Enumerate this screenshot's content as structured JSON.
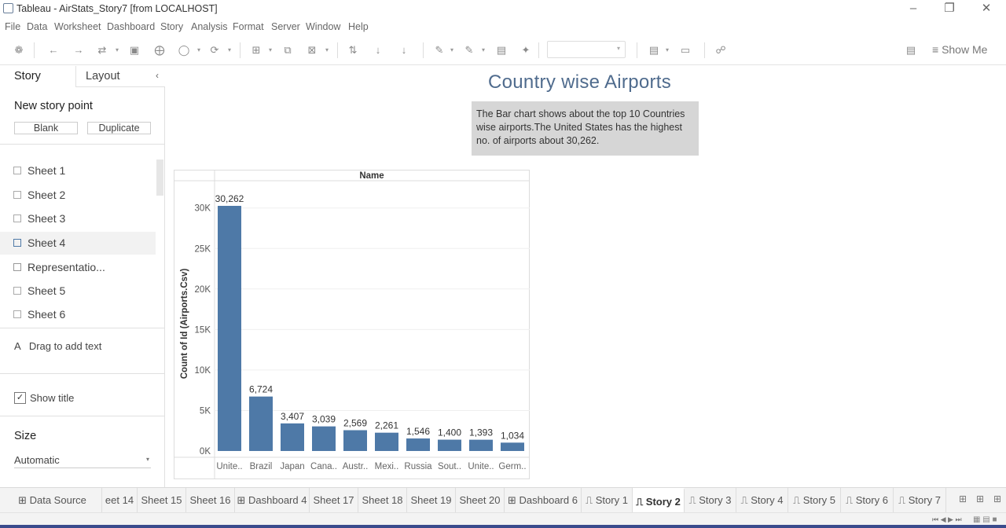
{
  "window": {
    "title": "Tableau - AirStats_Story7 [from LOCALHOST]",
    "minimize_icon": "minimize-icon",
    "restore_icon": "restore-icon",
    "close_icon": "close-icon"
  },
  "menu": [
    "File",
    "Data",
    "Worksheet",
    "Dashboard",
    "Story",
    "Analysis",
    "Format",
    "Server",
    "Window",
    "Help"
  ],
  "toolbar": {
    "show_me_label": "Show Me"
  },
  "left_pane": {
    "tab_story": "Story",
    "tab_layout": "Layout",
    "collapse_glyph": "‹",
    "new_story_point": "New story point",
    "blank_button": "Blank",
    "duplicate_button": "Duplicate",
    "sheets": [
      "Sheet 1",
      "Sheet 2",
      "Sheet 3",
      "Sheet 4",
      "Representatio...",
      "Sheet 5",
      "Sheet 6"
    ],
    "drag_text_glyph": "A",
    "drag_text": "Drag to add text",
    "show_title_check": "✓",
    "show_title_label": "Show title",
    "show_title_checked": true,
    "size_heading": "Size",
    "size_value": "Automatic"
  },
  "story": {
    "title": "Country wise Airports",
    "caption": "The Bar chart shows about the top 10 Countries wise airports.The United States has the highest no. of airports about 30,262."
  },
  "chart_data": {
    "type": "bar",
    "header": "Name",
    "ylabel": "Count of Id (Airports.Csv)",
    "xlabel": "",
    "categories": [
      "Unite..",
      "Brazil",
      "Japan",
      "Cana..",
      "Austr..",
      "Mexi..",
      "Russia",
      "Sout..",
      "Unite..",
      "Germ.."
    ],
    "values": [
      30262,
      6724,
      3407,
      3039,
      2569,
      2261,
      1546,
      1400,
      1393,
      1034
    ],
    "value_labels": [
      "30,262",
      "6,724",
      "3,407",
      "3,039",
      "2,569",
      "2,261",
      "1,546",
      "1,400",
      "1,393",
      "1,034"
    ],
    "yticks": [
      0,
      5000,
      10000,
      15000,
      20000,
      25000,
      30000
    ],
    "ytick_labels": [
      "0K",
      "5K",
      "10K",
      "15K",
      "20K",
      "25K",
      "30K"
    ],
    "ylim": [
      0,
      30262
    ],
    "bar_color": "#4e79a7",
    "grid": true
  },
  "bottom_tabs": [
    "Data Source",
    "eet 14",
    "Sheet 15",
    "Sheet 16",
    "Dashboard 4",
    "Sheet 17",
    "Sheet 18",
    "Sheet 19",
    "Sheet 20",
    "Dashboard 6",
    "Story 1",
    "Story 2",
    "Story 3",
    "Story 4",
    "Story 5",
    "Story 6",
    "Story 7"
  ],
  "active_tab": "Story 2"
}
